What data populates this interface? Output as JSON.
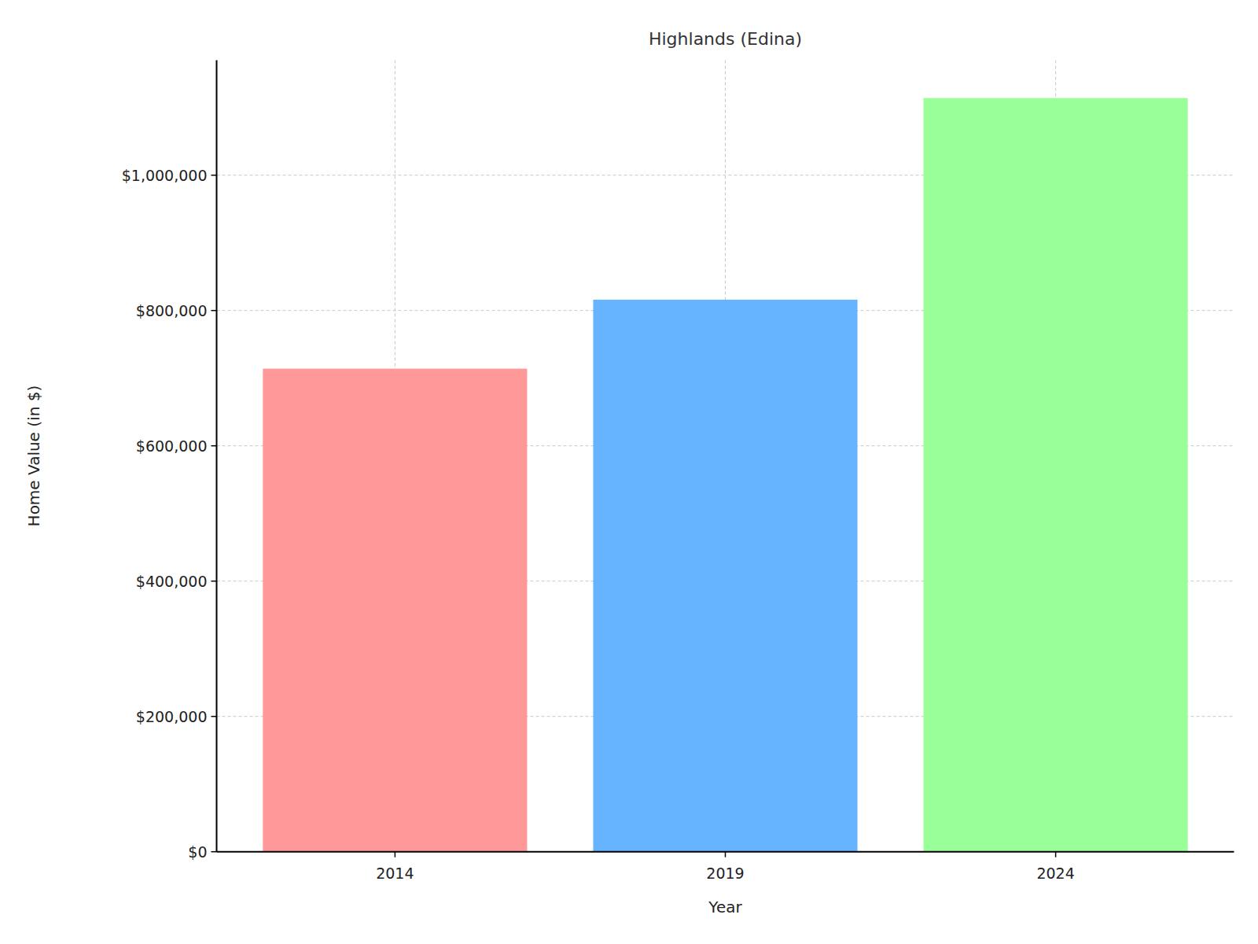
{
  "chart_data": {
    "type": "bar",
    "title": "Highlands (Edina)",
    "x_label": "Year",
    "y_label": "Home Value (in $)",
    "categories": [
      "2014",
      "2019",
      "2024"
    ],
    "values": [
      714000,
      816000,
      1114000
    ],
    "colors": [
      "#ff9999",
      "#66b3ff",
      "#99ff99"
    ],
    "ylim": [
      0,
      1170000
    ],
    "yticks": [
      {
        "value": 0,
        "label": "$0"
      },
      {
        "value": 200000,
        "label": "$200,000"
      },
      {
        "value": 400000,
        "label": "$400,000"
      },
      {
        "value": 600000,
        "label": "$600,000"
      },
      {
        "value": 800000,
        "label": "$800,000"
      },
      {
        "value": 1000000,
        "label": "$1,000,000"
      }
    ],
    "grid": true
  }
}
